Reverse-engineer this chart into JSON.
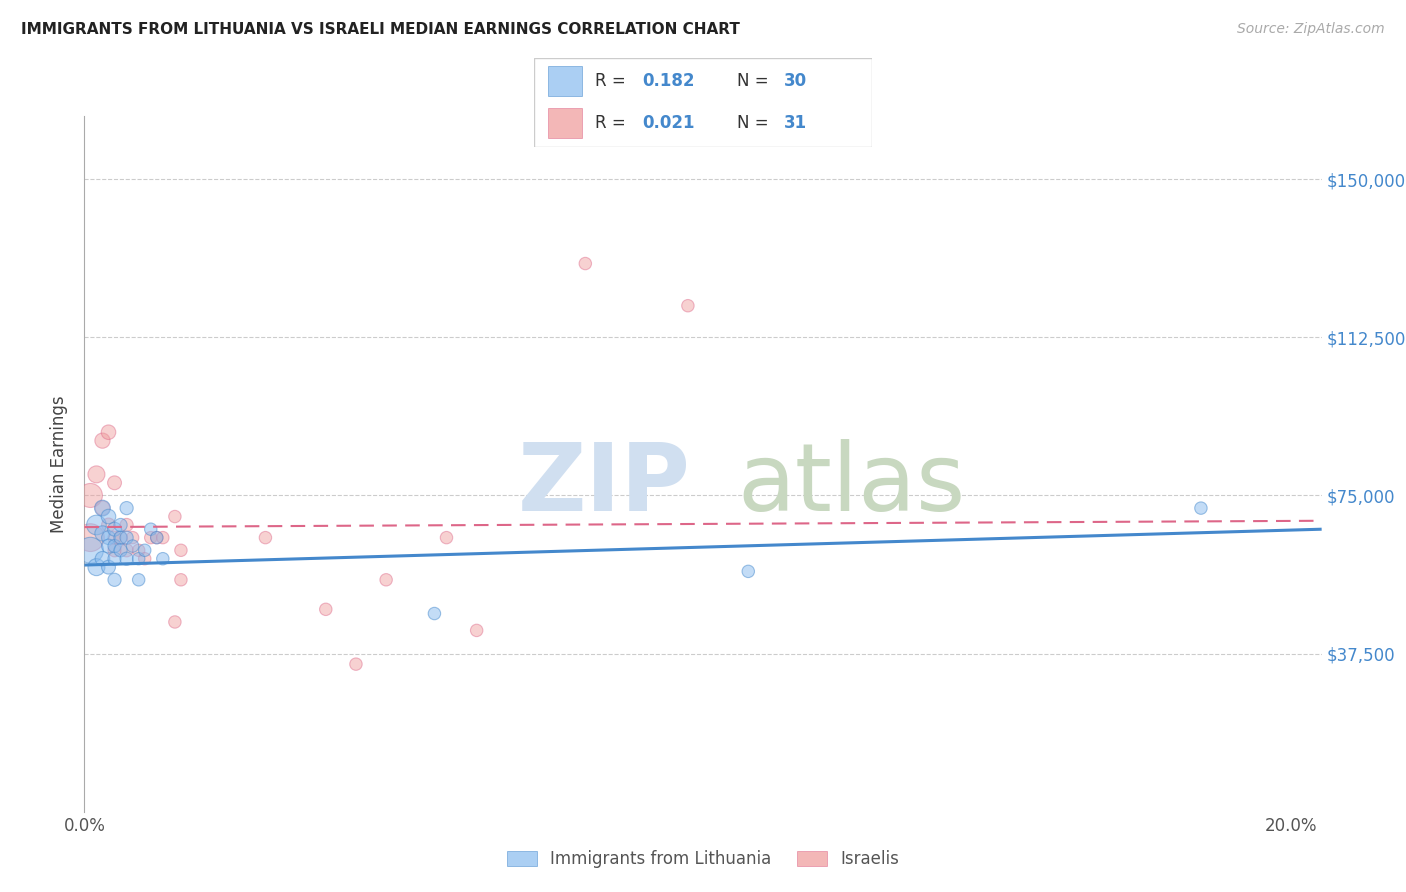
{
  "title": "IMMIGRANTS FROM LITHUANIA VS ISRAELI MEDIAN EARNINGS CORRELATION CHART",
  "source": "Source: ZipAtlas.com",
  "ylabel": "Median Earnings",
  "xlim": [
    0.0,
    0.205
  ],
  "ylim": [
    0,
    165000
  ],
  "color_blue": "#88bbee",
  "color_pink": "#ee9999",
  "color_blue_dark": "#4488cc",
  "color_pink_dark": "#dd6688",
  "color_blue_text": "#4488cc",
  "color_pink_text": "#4488cc",
  "label1": "Immigrants from Lithuania",
  "label2": "Israelis",
  "blue_x": [
    0.001,
    0.002,
    0.002,
    0.003,
    0.003,
    0.003,
    0.004,
    0.004,
    0.004,
    0.004,
    0.005,
    0.005,
    0.005,
    0.005,
    0.006,
    0.006,
    0.006,
    0.007,
    0.007,
    0.007,
    0.008,
    0.009,
    0.009,
    0.01,
    0.011,
    0.012,
    0.013,
    0.058,
    0.11,
    0.185
  ],
  "blue_y": [
    62000,
    68000,
    58000,
    72000,
    66000,
    60000,
    70000,
    65000,
    63000,
    58000,
    67000,
    63000,
    60000,
    55000,
    65000,
    68000,
    62000,
    65000,
    72000,
    60000,
    63000,
    60000,
    55000,
    62000,
    67000,
    65000,
    60000,
    47000,
    57000,
    72000
  ],
  "blue_sizes": [
    350,
    200,
    150,
    130,
    120,
    110,
    110,
    100,
    100,
    100,
    100,
    90,
    90,
    90,
    90,
    90,
    90,
    90,
    90,
    90,
    80,
    80,
    80,
    80,
    80,
    80,
    80,
    80,
    80,
    80
  ],
  "pink_x": [
    0.001,
    0.001,
    0.002,
    0.003,
    0.003,
    0.004,
    0.004,
    0.005,
    0.005,
    0.005,
    0.006,
    0.007,
    0.007,
    0.008,
    0.009,
    0.01,
    0.011,
    0.012,
    0.013,
    0.015,
    0.015,
    0.016,
    0.016,
    0.03,
    0.04,
    0.045,
    0.05,
    0.06,
    0.065,
    0.083,
    0.1
  ],
  "pink_y": [
    65000,
    75000,
    80000,
    88000,
    72000,
    90000,
    68000,
    78000,
    65000,
    62000,
    65000,
    68000,
    62000,
    65000,
    62000,
    60000,
    65000,
    65000,
    65000,
    70000,
    45000,
    62000,
    55000,
    65000,
    48000,
    35000,
    55000,
    65000,
    43000,
    130000,
    120000
  ],
  "pink_sizes": [
    400,
    300,
    150,
    120,
    110,
    110,
    100,
    100,
    90,
    90,
    90,
    90,
    90,
    80,
    80,
    80,
    80,
    80,
    80,
    80,
    80,
    80,
    80,
    80,
    80,
    80,
    80,
    80,
    80,
    80,
    80
  ],
  "blue_line_x": [
    0.0,
    0.205
  ],
  "blue_line_y": [
    58500,
    67000
  ],
  "pink_line_x": [
    0.0,
    0.205
  ],
  "pink_line_y": [
    67500,
    69000
  ],
  "ytick_positions": [
    37500,
    75000,
    112500,
    150000
  ],
  "ytick_labels": [
    "$37,500",
    "$75,000",
    "$112,500",
    "$150,000"
  ],
  "xtick_positions": [
    0.0,
    0.04,
    0.08,
    0.12,
    0.16,
    0.2
  ],
  "xtick_labels": [
    "0.0%",
    "",
    "",
    "",
    "",
    "20.0%"
  ]
}
